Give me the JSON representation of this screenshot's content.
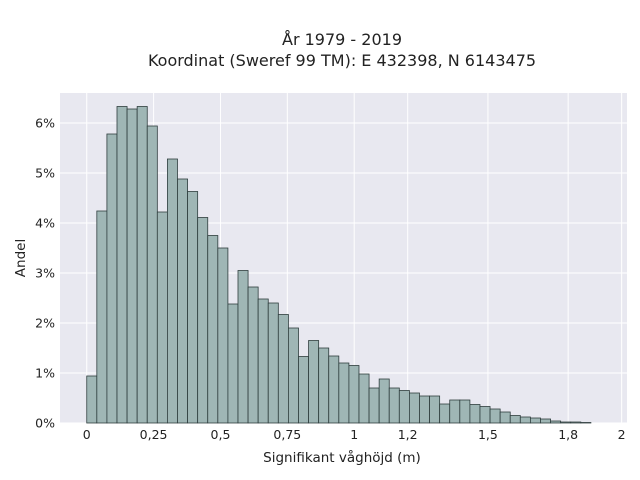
{
  "chart_data": {
    "type": "bar",
    "title_lines": [
      "År 1979 - 2019",
      "Koordinat (Sweref 99 TM): E 432398, N 6143475"
    ],
    "xlabel": "Signifikant våghöjd (m)",
    "ylabel": "Andel",
    "xlim": [
      -0.1,
      2.02
    ],
    "ylim": [
      0,
      6.6
    ],
    "x_ticks": [
      {
        "value": 0,
        "label": "0"
      },
      {
        "value": 0.25,
        "label": "0,25"
      },
      {
        "value": 0.5,
        "label": "0,5"
      },
      {
        "value": 0.75,
        "label": "0,75"
      },
      {
        "value": 1,
        "label": "1"
      },
      {
        "value": 1.2,
        "label": "1,2"
      },
      {
        "value": 1.5,
        "label": "1,5"
      },
      {
        "value": 1.8,
        "label": "1,8"
      },
      {
        "value": 2,
        "label": "2"
      }
    ],
    "y_ticks": [
      {
        "value": 0,
        "label": "0%"
      },
      {
        "value": 1,
        "label": "1%"
      },
      {
        "value": 2,
        "label": "2%"
      },
      {
        "value": 3,
        "label": "3%"
      },
      {
        "value": 4,
        "label": "4%"
      },
      {
        "value": 5,
        "label": "5%"
      },
      {
        "value": 6,
        "label": "6%"
      }
    ],
    "bin_start": 0,
    "bin_width": 0.0377,
    "values": [
      0.94,
      4.24,
      5.78,
      6.33,
      6.28,
      6.33,
      5.94,
      4.22,
      5.28,
      4.88,
      4.63,
      4.11,
      3.75,
      3.5,
      2.38,
      3.05,
      2.72,
      2.48,
      2.4,
      2.17,
      1.9,
      1.33,
      1.65,
      1.5,
      1.34,
      1.2,
      1.15,
      0.98,
      0.7,
      0.88,
      0.7,
      0.65,
      0.6,
      0.54,
      0.54,
      0.38,
      0.46,
      0.46,
      0.37,
      0.33,
      0.28,
      0.22,
      0.15,
      0.12,
      0.1,
      0.08,
      0.04,
      0.02,
      0.02,
      0.01
    ],
    "grid": true,
    "bar_color": "#9fb6b5",
    "bar_edge_color": "#2f3e3e",
    "plot_background": "#e8e8f0",
    "grid_color": "#ffffff"
  }
}
